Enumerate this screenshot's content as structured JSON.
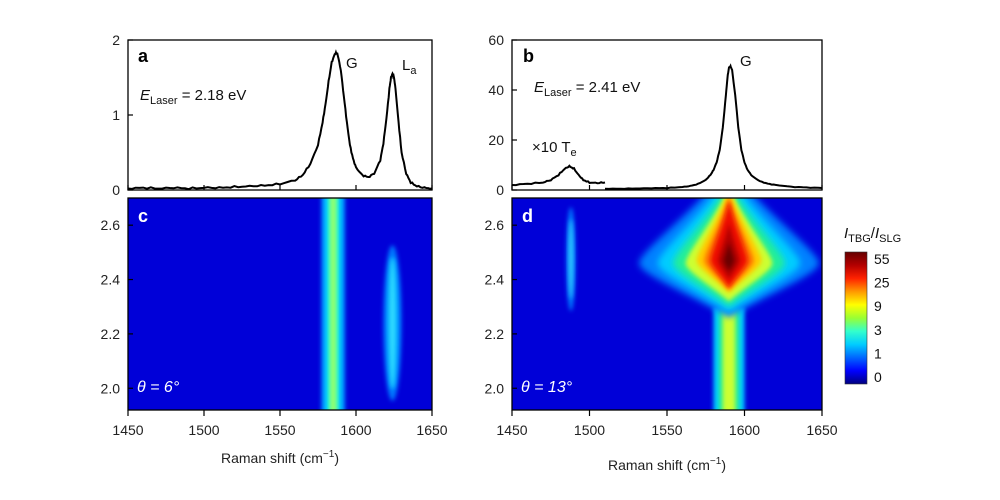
{
  "chart_data": [
    {
      "panel": "a",
      "type": "line",
      "xlim": [
        1450,
        1650
      ],
      "ylim": [
        0,
        2
      ],
      "y_ticks": [
        0,
        1,
        2
      ],
      "annotation": {
        "prefix": "E",
        "sub": "Laser",
        "value": " = 2.18 eV"
      },
      "peak_labels": [
        {
          "text": "G",
          "sub": "",
          "x": 1587,
          "y": 1.83
        },
        {
          "text": "L",
          "sub": "a",
          "x": 1624,
          "y": 1.55
        }
      ],
      "x": [
        1450,
        1460,
        1470,
        1480,
        1490,
        1500,
        1510,
        1520,
        1530,
        1540,
        1550,
        1560,
        1565,
        1570,
        1575,
        1578,
        1580,
        1582,
        1584,
        1586,
        1587,
        1588,
        1590,
        1592,
        1594,
        1596,
        1598,
        1600,
        1604,
        1608,
        1612,
        1616,
        1618,
        1620,
        1622,
        1623,
        1624,
        1625,
        1626,
        1628,
        1630,
        1633,
        1636,
        1640,
        1645,
        1650
      ],
      "y": [
        0.02,
        0.03,
        0.02,
        0.03,
        0.02,
        0.03,
        0.03,
        0.04,
        0.05,
        0.06,
        0.08,
        0.13,
        0.2,
        0.35,
        0.6,
        0.9,
        1.15,
        1.45,
        1.7,
        1.81,
        1.83,
        1.8,
        1.6,
        1.25,
        0.9,
        0.6,
        0.42,
        0.3,
        0.2,
        0.17,
        0.22,
        0.4,
        0.62,
        0.95,
        1.35,
        1.5,
        1.55,
        1.5,
        1.35,
        0.9,
        0.5,
        0.22,
        0.1,
        0.05,
        0.03,
        0.02
      ]
    },
    {
      "panel": "b",
      "type": "line",
      "xlim": [
        1450,
        1650
      ],
      "ylim": [
        0,
        60
      ],
      "y_ticks": [
        0,
        20,
        40,
        60
      ],
      "annotation": {
        "prefix": "E",
        "sub": "Laser",
        "value": " = 2.41 eV"
      },
      "inset_label": {
        "text": "×10 T",
        "sub": "e"
      },
      "peak_labels": [
        {
          "text": "G",
          "sub": "",
          "x": 1593,
          "y": 50
        }
      ],
      "x_inset": [
        1450,
        1460,
        1470,
        1475,
        1480,
        1484,
        1487,
        1490,
        1493,
        1496,
        1500,
        1505,
        1510
      ],
      "y_inset": [
        2,
        2.5,
        3,
        4,
        6,
        8.5,
        9.5,
        8.5,
        6,
        4,
        3,
        2.8,
        3
      ],
      "x": [
        1510,
        1520,
        1530,
        1540,
        1550,
        1560,
        1565,
        1570,
        1575,
        1578,
        1580,
        1582,
        1584,
        1586,
        1588,
        1589,
        1590,
        1591,
        1592,
        1594,
        1596,
        1598,
        1600,
        1602,
        1605,
        1610,
        1615,
        1620,
        1630,
        1640,
        1650
      ],
      "y": [
        0.5,
        0.5,
        0.6,
        0.7,
        0.8,
        1.2,
        1.6,
        2.4,
        4,
        6,
        8,
        11,
        16,
        25,
        38,
        45,
        49,
        49.5,
        48,
        38,
        25,
        16,
        11,
        8,
        5.5,
        3.5,
        2.5,
        2,
        1.3,
        1,
        0.8
      ]
    },
    {
      "panel": "c",
      "type": "heatmap",
      "xlim": [
        1450,
        1650
      ],
      "ylim": [
        1.92,
        2.7
      ],
      "y_ticks": [
        2.0,
        2.2,
        2.4,
        2.6
      ],
      "x_ticks": [
        1450,
        1500,
        1550,
        1600,
        1650
      ],
      "xlabel": "Raman shift (cm",
      "xlabel_sup": "−1",
      "xlabel_end": ")",
      "theta_label": "θ = 6°",
      "features": [
        {
          "name": "G",
          "x": 1585,
          "y_from": 1.92,
          "y_to": 2.7,
          "widths": [
            14,
            9,
            5,
            2.5
          ],
          "levels": [
            "#0099ff",
            "#00ccff",
            "#33ffcc",
            "#99ff66"
          ]
        },
        {
          "name": "La",
          "x": 1624,
          "y_from": 2.02,
          "y_to": 2.46,
          "widths": [
            6,
            3.5,
            2
          ],
          "levels": [
            "#0077ff",
            "#00aaff",
            "#33ddff"
          ]
        }
      ]
    },
    {
      "panel": "d",
      "type": "heatmap",
      "xlim": [
        1450,
        1650
      ],
      "ylim": [
        1.92,
        2.7
      ],
      "y_ticks": [
        2.0,
        2.2,
        2.4,
        2.6
      ],
      "x_ticks": [
        1450,
        1500,
        1550,
        1600,
        1650
      ],
      "xlabel": "Raman shift (cm",
      "xlabel_sup": "−1",
      "xlabel_end": ")",
      "theta_label": "θ = 13°",
      "features": [
        {
          "name": "Te",
          "x": 1488,
          "y_from": 2.35,
          "y_to": 2.6,
          "widths": [
            3,
            1.5
          ],
          "levels": [
            "#0077ff",
            "#33ccff"
          ]
        }
      ],
      "blob_levels": [
        {
          "color": "#0080ff",
          "cy": 2.46,
          "rx": 58,
          "ry_top": 0.36,
          "ry_bot": 0.2
        },
        {
          "color": "#00ccff",
          "cy": 2.46,
          "rx": 46,
          "ry_top": 0.33,
          "ry_bot": 0.18
        },
        {
          "color": "#22ee99",
          "cy": 2.46,
          "rx": 36,
          "ry_top": 0.3,
          "ry_bot": 0.16
        },
        {
          "color": "#ccff33",
          "cy": 2.46,
          "rx": 28,
          "ry_top": 0.28,
          "ry_bot": 0.14
        },
        {
          "color": "#ffcc00",
          "cy": 2.47,
          "rx": 21,
          "ry_top": 0.26,
          "ry_bot": 0.12
        },
        {
          "color": "#ff7700",
          "cy": 2.47,
          "rx": 16,
          "ry_top": 0.24,
          "ry_bot": 0.11
        },
        {
          "color": "#ee1100",
          "cy": 2.47,
          "rx": 12,
          "ry_top": 0.22,
          "ry_bot": 0.1
        },
        {
          "color": "#b30000",
          "cy": 2.47,
          "rx": 7,
          "ry_top": 0.14,
          "ry_bot": 0.07
        },
        {
          "color": "#6b0000",
          "cy": 2.47,
          "rx": 3.5,
          "ry_top": 0.07,
          "ry_bot": 0.04
        }
      ],
      "stem": {
        "x": 1590,
        "y_from": 1.92,
        "y_to": 2.3,
        "widths": [
          20,
          13,
          8
        ],
        "levels": [
          "#00ccff",
          "#22ee99",
          "#ccff33"
        ]
      }
    }
  ],
  "colorbar": {
    "title_main": "I",
    "title_sub1": "TBG",
    "title_slash": "/",
    "title_main2": "I",
    "title_sub2": "SLG",
    "ticks": [
      "55",
      "25",
      "9",
      "3",
      "1",
      "0"
    ],
    "colors": [
      "#000080",
      "#0000ff",
      "#0066ff",
      "#00ccff",
      "#33ffcc",
      "#99ff33",
      "#ffff00",
      "#ff9900",
      "#ff2200",
      "#b30000",
      "#660000"
    ]
  }
}
